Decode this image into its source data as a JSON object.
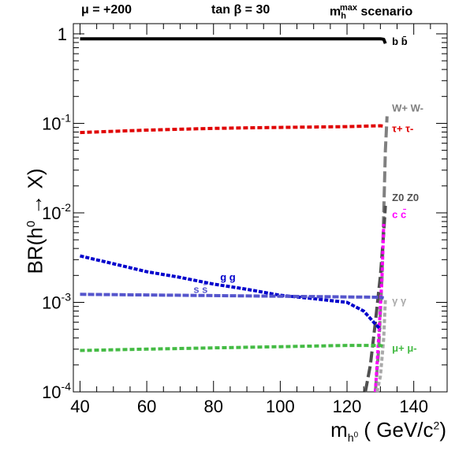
{
  "header": {
    "mu_label": "μ = +200",
    "tanb_label": "tan β = 30",
    "scenario_label": "scenario",
    "scenario_m": "m",
    "scenario_sub": "h",
    "scenario_sup": "max"
  },
  "chart_data": {
    "type": "line",
    "xlabel": "m_h0 ( GeV/c^2)",
    "xlabel_parts": {
      "m": "m",
      "sub_h": "h",
      "sub_0": "0",
      "unit": " ( GeV/c",
      "unit_sup": "2",
      "close": ")"
    },
    "ylabel": "BR(h0 → X)",
    "ylabel_parts": {
      "pre": "BR(h",
      "sup": "0",
      "post": " → X)"
    },
    "xlim": [
      38,
      150
    ],
    "ylim": [
      0.0001,
      1.3
    ],
    "yscale": "log",
    "x_ticks": [
      40,
      60,
      80,
      100,
      120,
      140
    ],
    "y_ticks": [
      {
        "value": 1,
        "base": "1",
        "exp": ""
      },
      {
        "value": 0.1,
        "base": "10",
        "exp": "-1"
      },
      {
        "value": 0.01,
        "base": "10",
        "exp": "-2"
      },
      {
        "value": 0.001,
        "base": "10",
        "exp": "-3"
      },
      {
        "value": 0.0001,
        "base": "10",
        "exp": "-4"
      }
    ],
    "series": [
      {
        "name": "b b̄",
        "color": "#000000",
        "dash": "",
        "x": [
          40,
          60,
          80,
          100,
          120,
          130,
          131,
          131.5
        ],
        "y": [
          0.88,
          0.88,
          0.88,
          0.88,
          0.88,
          0.88,
          0.87,
          0.78
        ]
      },
      {
        "name": "τ+ τ-",
        "color": "#e00000",
        "dash": "6,3",
        "x": [
          40,
          60,
          80,
          100,
          120,
          130,
          131
        ],
        "y": [
          0.079,
          0.084,
          0.088,
          0.09,
          0.092,
          0.094,
          0.093
        ]
      },
      {
        "name": "W+ W-",
        "color": "#808080",
        "dash": "14,5",
        "x": [
          128.5,
          129.5,
          130.5,
          131,
          131.5,
          132
        ],
        "y": [
          0.0001,
          0.0003,
          0.002,
          0.01,
          0.05,
          0.12
        ]
      },
      {
        "name": "Z0 Z0",
        "color": "#505050",
        "dash": "14,5",
        "x": [
          125.5,
          127,
          128.5,
          130,
          131,
          131.5
        ],
        "y": [
          0.0001,
          0.0002,
          0.0006,
          0.002,
          0.006,
          0.012
        ]
      },
      {
        "name": "c c̄",
        "color": "#ff00ff",
        "dash": "4,3",
        "x": [
          128.5,
          129.5,
          130.5,
          131
        ],
        "y": [
          0.0001,
          0.0004,
          0.002,
          0.0075
        ]
      },
      {
        "name": "g g",
        "color": "#0000cc",
        "dash": "5,2",
        "x": [
          40,
          50,
          60,
          70,
          80,
          90,
          100,
          110,
          120,
          125,
          128,
          130
        ],
        "y": [
          0.0033,
          0.0027,
          0.0022,
          0.0019,
          0.0016,
          0.0014,
          0.0012,
          0.0011,
          0.001,
          0.0008,
          0.0006,
          0.0005
        ]
      },
      {
        "name": "s s̄",
        "color": "#5555cc",
        "dash": "8,2",
        "x": [
          40,
          60,
          80,
          100,
          120,
          130,
          131
        ],
        "y": [
          0.00123,
          0.00121,
          0.00119,
          0.00117,
          0.00115,
          0.00114,
          0.00112
        ]
      },
      {
        "name": "γ γ",
        "color": "#aaaaaa",
        "dash": "5,3",
        "x": [
          129,
          130,
          131,
          131.5
        ],
        "y": [
          0.0001,
          0.00015,
          0.0004,
          0.0011
        ]
      },
      {
        "name": "μ+ μ-",
        "color": "#44bb44",
        "dash": "6,3",
        "x": [
          40,
          60,
          80,
          100,
          120,
          130,
          131
        ],
        "y": [
          0.00029,
          0.0003,
          0.00031,
          0.00032,
          0.00033,
          0.00033,
          0.00032
        ]
      }
    ],
    "labels": [
      {
        "text": "b b̄",
        "color": "#000000",
        "x": 133.5,
        "y": 0.75
      },
      {
        "text": "W+ W-",
        "color": "#808080",
        "x": 133.5,
        "y": 0.135
      },
      {
        "text": "τ+ τ-",
        "color": "#e00000",
        "x": 133.5,
        "y": 0.08
      },
      {
        "text": "Z0 Z0",
        "color": "#505050",
        "x": 133.5,
        "y": 0.0135
      },
      {
        "text": "c c̄",
        "color": "#ff00ff",
        "x": 133.5,
        "y": 0.0088
      },
      {
        "text": "g g",
        "color": "#0000cc",
        "x": 82,
        "y": 0.00175
      },
      {
        "text": "s s̄",
        "color": "#5555cc",
        "x": 74,
        "y": 0.00128
      },
      {
        "text": "γ γ",
        "color": "#aaaaaa",
        "x": 133.5,
        "y": 0.00095
      },
      {
        "text": "μ+ μ-",
        "color": "#44bb44",
        "x": 133.5,
        "y": 0.00028
      }
    ]
  }
}
